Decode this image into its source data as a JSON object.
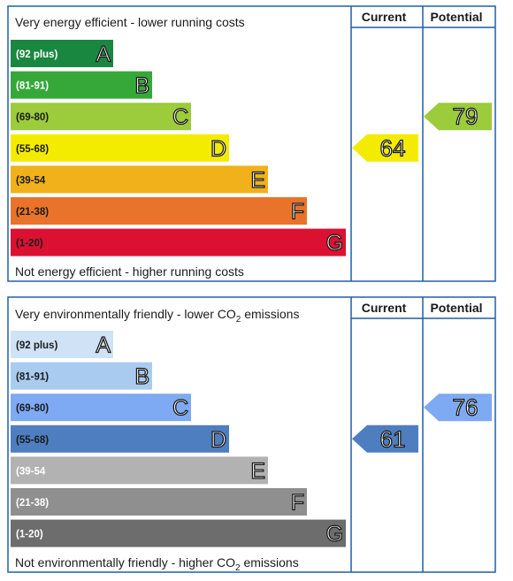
{
  "colors": {
    "border": "#1f5fa8",
    "text": "#1a1a1a"
  },
  "chart_data": [
    {
      "type": "bar",
      "top_caption": "Very energy efficient - lower running costs",
      "bottom_caption": "Not energy efficient - higher running costs",
      "current_header": "Current",
      "potential_header": "Potential",
      "bands": [
        {
          "label": "A",
          "range": "(92 plus)",
          "color": "#1a8740",
          "light_text": true
        },
        {
          "label": "B",
          "range": "(81-91)",
          "color": "#36a83a",
          "light_text": true
        },
        {
          "label": "C",
          "range": "(69-80)",
          "color": "#9ccb3b",
          "light_text": false
        },
        {
          "label": "D",
          "range": "(55-68)",
          "color": "#f4ec00",
          "light_text": false
        },
        {
          "label": "E",
          "range": "(39-54",
          "color": "#f0b11a",
          "light_text": false
        },
        {
          "label": "F",
          "range": "(21-38)",
          "color": "#e9732a",
          "light_text": false
        },
        {
          "label": "G",
          "range": "(1-20)",
          "color": "#dc1131",
          "light_text": false
        }
      ],
      "current": {
        "value": 64,
        "band": "D",
        "color": "#f4ec00"
      },
      "potential": {
        "value": 79,
        "band": "C",
        "color": "#9ccb3b"
      }
    },
    {
      "type": "bar",
      "top_caption_main": "Very environmentally friendly - lower CO",
      "top_caption_sub": "2",
      "top_caption_tail": " emissions",
      "bottom_caption_main": "Not environmentally friendly - higher CO",
      "bottom_caption_sub": "2",
      "bottom_caption_tail": " emissions",
      "current_header": "Current",
      "potential_header": "Potential",
      "bands": [
        {
          "label": "A",
          "range": "(92 plus)",
          "color": "#cfe2f6",
          "light_text": false
        },
        {
          "label": "B",
          "range": "(81-91)",
          "color": "#a9cbef",
          "light_text": false
        },
        {
          "label": "C",
          "range": "(69-80)",
          "color": "#7ea9f3",
          "light_text": false
        },
        {
          "label": "D",
          "range": "(55-68)",
          "color": "#4f7ec0",
          "light_text": false
        },
        {
          "label": "E",
          "range": "(39-54",
          "color": "#b2b2b2",
          "light_text": true
        },
        {
          "label": "F",
          "range": "(21-38)",
          "color": "#8f8f8f",
          "light_text": true
        },
        {
          "label": "G",
          "range": "(1-20)",
          "color": "#6d6d6d",
          "light_text": true
        }
      ],
      "current": {
        "value": 61,
        "band": "D",
        "color": "#4f7ec0"
      },
      "potential": {
        "value": 76,
        "band": "C",
        "color": "#7ea9f3"
      }
    }
  ]
}
